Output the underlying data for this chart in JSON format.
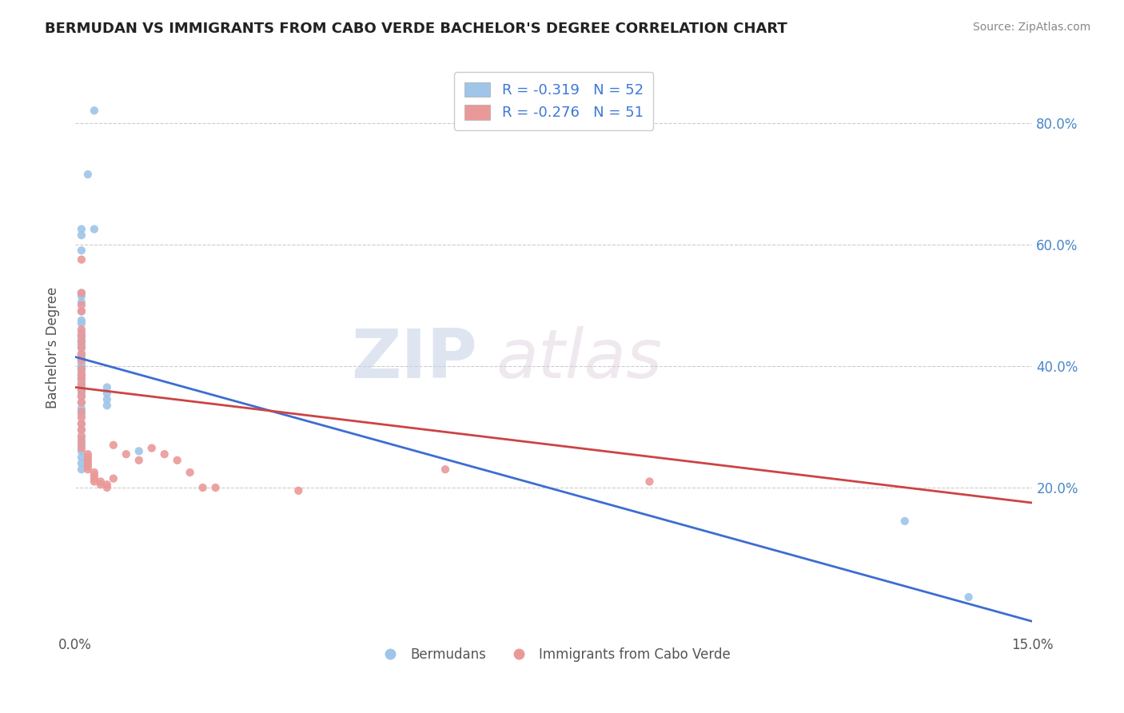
{
  "title": "BERMUDAN VS IMMIGRANTS FROM CABO VERDE BACHELOR'S DEGREE CORRELATION CHART",
  "source": "Source: ZipAtlas.com",
  "ylabel": "Bachelor's Degree",
  "y_ticks_right": [
    "20.0%",
    "40.0%",
    "60.0%",
    "80.0%"
  ],
  "y_ticks_right_vals": [
    0.2,
    0.4,
    0.6,
    0.8
  ],
  "xlim": [
    0.0,
    0.15
  ],
  "ylim": [
    -0.04,
    0.9
  ],
  "legend_r1": "R = -0.319",
  "legend_n1": "N = 52",
  "legend_r2": "R = -0.276",
  "legend_n2": "N = 51",
  "legend_label1": "Bermudans",
  "legend_label2": "Immigrants from Cabo Verde",
  "color_blue": "#9fc5e8",
  "color_pink": "#ea9999",
  "line_color_blue": "#3d6dd1",
  "line_color_pink": "#cc4444",
  "background_color": "#ffffff",
  "watermark_zip": "ZIP",
  "watermark_atlas": "atlas",
  "blue_scatter_x": [
    0.003,
    0.002,
    0.003,
    0.001,
    0.001,
    0.001,
    0.001,
    0.001,
    0.001,
    0.001,
    0.001,
    0.001,
    0.001,
    0.001,
    0.001,
    0.001,
    0.001,
    0.001,
    0.001,
    0.001,
    0.001,
    0.001,
    0.001,
    0.001,
    0.001,
    0.001,
    0.001,
    0.001,
    0.001,
    0.001,
    0.001,
    0.001,
    0.001,
    0.001,
    0.001,
    0.001,
    0.001,
    0.001,
    0.001,
    0.001,
    0.001,
    0.001,
    0.001,
    0.001,
    0.001,
    0.005,
    0.005,
    0.005,
    0.005,
    0.01,
    0.13,
    0.14
  ],
  "blue_scatter_y": [
    0.82,
    0.715,
    0.625,
    0.625,
    0.615,
    0.59,
    0.52,
    0.515,
    0.505,
    0.49,
    0.475,
    0.47,
    0.455,
    0.45,
    0.445,
    0.44,
    0.435,
    0.435,
    0.43,
    0.42,
    0.415,
    0.41,
    0.405,
    0.4,
    0.395,
    0.39,
    0.385,
    0.38,
    0.375,
    0.37,
    0.365,
    0.36,
    0.355,
    0.35,
    0.34,
    0.33,
    0.32,
    0.305,
    0.295,
    0.28,
    0.27,
    0.26,
    0.25,
    0.24,
    0.23,
    0.365,
    0.355,
    0.345,
    0.335,
    0.26,
    0.145,
    0.02
  ],
  "pink_scatter_x": [
    0.001,
    0.001,
    0.001,
    0.001,
    0.001,
    0.001,
    0.001,
    0.001,
    0.001,
    0.001,
    0.001,
    0.001,
    0.001,
    0.001,
    0.001,
    0.001,
    0.001,
    0.001,
    0.001,
    0.001,
    0.001,
    0.001,
    0.001,
    0.001,
    0.002,
    0.002,
    0.002,
    0.002,
    0.002,
    0.002,
    0.003,
    0.003,
    0.003,
    0.003,
    0.004,
    0.004,
    0.005,
    0.005,
    0.006,
    0.006,
    0.008,
    0.01,
    0.012,
    0.014,
    0.016,
    0.018,
    0.02,
    0.022,
    0.035,
    0.058,
    0.09
  ],
  "pink_scatter_y": [
    0.575,
    0.52,
    0.5,
    0.49,
    0.46,
    0.45,
    0.44,
    0.43,
    0.42,
    0.41,
    0.395,
    0.385,
    0.38,
    0.37,
    0.36,
    0.35,
    0.34,
    0.325,
    0.315,
    0.305,
    0.295,
    0.285,
    0.275,
    0.265,
    0.255,
    0.25,
    0.245,
    0.24,
    0.235,
    0.23,
    0.225,
    0.22,
    0.215,
    0.21,
    0.21,
    0.205,
    0.205,
    0.2,
    0.215,
    0.27,
    0.255,
    0.245,
    0.265,
    0.255,
    0.245,
    0.225,
    0.2,
    0.2,
    0.195,
    0.23,
    0.21
  ],
  "blue_line_x0": 0.0,
  "blue_line_y0": 0.415,
  "blue_line_x1": 0.15,
  "blue_line_y1": -0.02,
  "pink_line_x0": 0.0,
  "pink_line_y0": 0.365,
  "pink_line_x1": 0.15,
  "pink_line_y1": 0.175
}
